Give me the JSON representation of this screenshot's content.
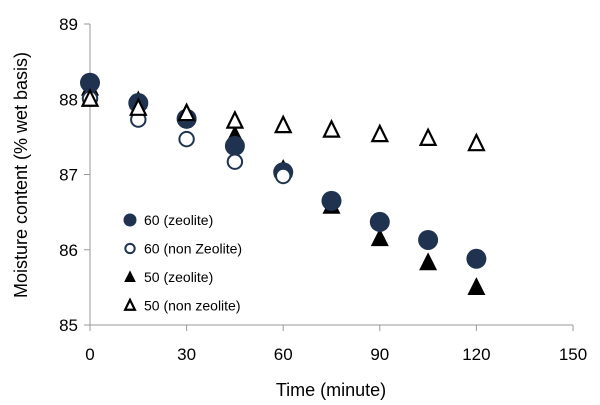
{
  "chart_data": {
    "type": "scatter",
    "xlabel": "Time (minute)",
    "ylabel": "Moisture content  (% wet basis)",
    "xlim": [
      0,
      150
    ],
    "ylim": [
      85,
      89
    ],
    "xticks": [
      0,
      30,
      60,
      90,
      120,
      150
    ],
    "yticks": [
      85,
      86,
      87,
      88,
      89
    ],
    "grid": false,
    "legend_position": "bottom-left",
    "series": [
      {
        "name": "60 (zeolite)",
        "marker": "filled-circle",
        "color": "#1f3350",
        "points": [
          [
            0,
            88.22
          ],
          [
            15,
            87.95
          ],
          [
            30,
            87.74
          ],
          [
            45,
            87.38
          ],
          [
            60,
            87.03
          ],
          [
            75,
            86.65
          ],
          [
            90,
            86.37
          ],
          [
            105,
            86.13
          ],
          [
            120,
            85.88
          ]
        ]
      },
      {
        "name": "60 (non Zeolite)",
        "marker": "open-circle",
        "color": "#1f3350",
        "points": [
          [
            0,
            88.01
          ],
          [
            15,
            87.73
          ],
          [
            30,
            87.47
          ],
          [
            45,
            87.17
          ],
          [
            60,
            86.98
          ]
        ]
      },
      {
        "name": "50 (zeolite)",
        "marker": "filled-triangle",
        "color": "#000000",
        "points": [
          [
            0,
            88.15
          ],
          [
            15,
            87.98
          ],
          [
            30,
            87.82
          ],
          [
            45,
            87.52
          ],
          [
            60,
            87.07
          ],
          [
            75,
            86.58
          ],
          [
            90,
            86.15
          ],
          [
            105,
            85.83
          ],
          [
            120,
            85.5
          ]
        ]
      },
      {
        "name": "50 (non zeolite)",
        "marker": "open-triangle",
        "color": "#000000",
        "points": [
          [
            0,
            88.0
          ],
          [
            15,
            87.88
          ],
          [
            30,
            87.81
          ],
          [
            45,
            87.71
          ],
          [
            60,
            87.65
          ],
          [
            75,
            87.59
          ],
          [
            90,
            87.53
          ],
          [
            105,
            87.48
          ],
          [
            120,
            87.41
          ]
        ]
      }
    ]
  }
}
